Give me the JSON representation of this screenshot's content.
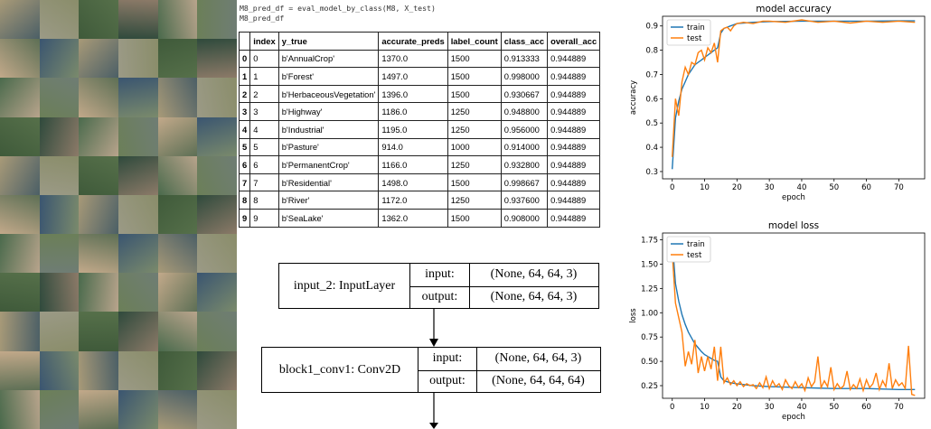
{
  "code": {
    "line1": "M8_pred_df = eval_model_by_class(M8, X_test)",
    "line2": "M8_pred_df"
  },
  "table": {
    "headers": [
      "",
      "index",
      "y_true",
      "accurate_preds",
      "label_count",
      "class_acc",
      "overall_acc"
    ],
    "rows": [
      [
        "0",
        "0",
        "b'AnnualCrop'",
        "1370.0",
        "1500",
        "0.913333",
        "0.944889"
      ],
      [
        "1",
        "1",
        "b'Forest'",
        "1497.0",
        "1500",
        "0.998000",
        "0.944889"
      ],
      [
        "2",
        "2",
        "b'HerbaceousVegetation'",
        "1396.0",
        "1500",
        "0.930667",
        "0.944889"
      ],
      [
        "3",
        "3",
        "b'Highway'",
        "1186.0",
        "1250",
        "0.948800",
        "0.944889"
      ],
      [
        "4",
        "4",
        "b'Industrial'",
        "1195.0",
        "1250",
        "0.956000",
        "0.944889"
      ],
      [
        "5",
        "5",
        "b'Pasture'",
        "914.0",
        "1000",
        "0.914000",
        "0.944889"
      ],
      [
        "6",
        "6",
        "b'PermanentCrop'",
        "1166.0",
        "1250",
        "0.932800",
        "0.944889"
      ],
      [
        "7",
        "7",
        "b'Residential'",
        "1498.0",
        "1500",
        "0.998667",
        "0.944889"
      ],
      [
        "8",
        "8",
        "b'River'",
        "1172.0",
        "1250",
        "0.937600",
        "0.944889"
      ],
      [
        "9",
        "9",
        "b'SeaLake'",
        "1362.0",
        "1500",
        "0.908000",
        "0.944889"
      ]
    ]
  },
  "diagram": {
    "node1": {
      "name": "input_2: InputLayer",
      "in_label": "input:",
      "in_value": "(None, 64, 64, 3)",
      "out_label": "output:",
      "out_value": "(None, 64, 64, 3)"
    },
    "node2": {
      "name": "block1_conv1: Conv2D",
      "in_label": "input:",
      "in_value": "(None, 64, 64, 3)",
      "out_label": "output:",
      "out_value": "(None, 64, 64, 64)"
    }
  },
  "colors": {
    "train": "#1f77b4",
    "test": "#ff7f0e"
  },
  "chart_data": [
    {
      "type": "line",
      "title": "model accuracy",
      "xlabel": "epoch",
      "ylabel": "accuracy",
      "xlim": [
        -3,
        78
      ],
      "ylim": [
        0.27,
        0.94
      ],
      "xticks": [
        0,
        10,
        20,
        30,
        40,
        50,
        60,
        70
      ],
      "yticks": [
        0.3,
        0.4,
        0.5,
        0.6,
        0.7,
        0.8,
        0.9
      ],
      "legend": "top-left",
      "series": [
        {
          "name": "train",
          "x": [
            0,
            1,
            2,
            3,
            4,
            5,
            6,
            7,
            8,
            9,
            10,
            11,
            12,
            13,
            14,
            15,
            16,
            17,
            18,
            19,
            20,
            22,
            25,
            30,
            40,
            50,
            60,
            70,
            75
          ],
          "y": [
            0.31,
            0.52,
            0.59,
            0.64,
            0.67,
            0.7,
            0.72,
            0.74,
            0.75,
            0.76,
            0.77,
            0.78,
            0.79,
            0.8,
            0.81,
            0.87,
            0.89,
            0.895,
            0.9,
            0.905,
            0.91,
            0.912,
            0.915,
            0.918,
            0.92,
            0.92,
            0.92,
            0.921,
            0.921
          ]
        },
        {
          "name": "test",
          "x": [
            0,
            1,
            2,
            3,
            4,
            5,
            6,
            7,
            8,
            9,
            10,
            11,
            12,
            13,
            14,
            15,
            16,
            17,
            18,
            19,
            20,
            22,
            25,
            28,
            30,
            35,
            40,
            45,
            50,
            55,
            60,
            65,
            70,
            75
          ],
          "y": [
            0.36,
            0.6,
            0.53,
            0.67,
            0.73,
            0.7,
            0.75,
            0.74,
            0.79,
            0.8,
            0.76,
            0.81,
            0.79,
            0.83,
            0.75,
            0.88,
            0.89,
            0.895,
            0.88,
            0.9,
            0.91,
            0.915,
            0.91,
            0.92,
            0.92,
            0.915,
            0.925,
            0.915,
            0.92,
            0.912,
            0.92,
            0.915,
            0.92,
            0.915
          ]
        }
      ]
    },
    {
      "type": "line",
      "title": "model loss",
      "xlabel": "epoch",
      "ylabel": "loss",
      "xlim": [
        -3,
        78
      ],
      "ylim": [
        0.12,
        1.82
      ],
      "xticks": [
        0,
        10,
        20,
        30,
        40,
        50,
        60,
        70
      ],
      "yticks": [
        0.25,
        0.5,
        0.75,
        1.0,
        1.25,
        1.5,
        1.75
      ],
      "legend": "top-left",
      "series": [
        {
          "name": "train",
          "x": [
            0,
            1,
            2,
            3,
            4,
            5,
            6,
            7,
            8,
            9,
            10,
            11,
            12,
            13,
            14,
            15,
            16,
            17,
            18,
            20,
            25,
            30,
            40,
            50,
            60,
            70,
            75
          ],
          "y": [
            1.75,
            1.3,
            1.12,
            0.98,
            0.88,
            0.8,
            0.74,
            0.68,
            0.64,
            0.6,
            0.57,
            0.55,
            0.53,
            0.51,
            0.5,
            0.34,
            0.3,
            0.29,
            0.28,
            0.27,
            0.25,
            0.24,
            0.23,
            0.22,
            0.22,
            0.21,
            0.21
          ]
        },
        {
          "name": "test",
          "x": [
            0,
            1,
            2,
            3,
            4,
            5,
            6,
            7,
            8,
            9,
            10,
            11,
            12,
            13,
            14,
            15,
            16,
            17,
            18,
            19,
            20,
            21,
            22,
            23,
            24,
            25,
            26,
            27,
            28,
            29,
            30,
            31,
            32,
            33,
            34,
            35,
            36,
            37,
            38,
            39,
            40,
            41,
            42,
            43,
            44,
            45,
            46,
            47,
            48,
            49,
            50,
            51,
            52,
            53,
            54,
            55,
            56,
            57,
            58,
            59,
            60,
            61,
            62,
            63,
            64,
            65,
            66,
            67,
            68,
            69,
            70,
            71,
            72,
            73,
            74,
            75
          ],
          "y": [
            1.62,
            1.1,
            0.95,
            0.8,
            0.45,
            0.6,
            0.47,
            0.72,
            0.38,
            0.55,
            0.4,
            0.55,
            0.42,
            0.65,
            0.3,
            0.65,
            0.28,
            0.33,
            0.26,
            0.3,
            0.25,
            0.29,
            0.24,
            0.27,
            0.25,
            0.26,
            0.22,
            0.28,
            0.23,
            0.34,
            0.22,
            0.3,
            0.24,
            0.27,
            0.21,
            0.31,
            0.25,
            0.22,
            0.29,
            0.23,
            0.27,
            0.2,
            0.33,
            0.24,
            0.29,
            0.55,
            0.23,
            0.3,
            0.24,
            0.44,
            0.21,
            0.27,
            0.22,
            0.25,
            0.4,
            0.21,
            0.26,
            0.22,
            0.32,
            0.2,
            0.31,
            0.23,
            0.27,
            0.38,
            0.21,
            0.3,
            0.24,
            0.48,
            0.22,
            0.31,
            0.25,
            0.28,
            0.22,
            0.66,
            0.16,
            0.15
          ]
        }
      ]
    }
  ]
}
